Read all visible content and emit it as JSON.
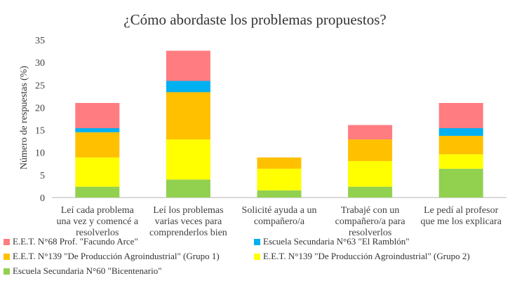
{
  "chart_data": {
    "type": "stacked-bar",
    "title": "¿Cómo abordaste los problemas propuestos?",
    "xlabel": "",
    "ylabel": "Número de respuestas (%)",
    "ylim": [
      0,
      35
    ],
    "yticks": [
      0,
      5,
      10,
      15,
      20,
      25,
      30,
      35
    ],
    "grid": false,
    "legend_position": "bottom",
    "categories": [
      "Leí cada problema una vez y comencé a resolverlos",
      "Leí los problemas varias veces para comprenderlos bien",
      "Solicité ayuda a un compañero/a",
      "Trabajé con un compañero/a para resolverlos",
      "Le pedí al profesor que me los explicara"
    ],
    "category_lines": [
      [
        "Leí cada problema",
        "una vez y comencé a",
        "resolverlos"
      ],
      [
        "Leí los problemas",
        "varias veces para",
        "comprenderlos bien"
      ],
      [
        "Solicité ayuda a un",
        "compañero/a"
      ],
      [
        "Trabajé con un",
        "compañero/a para",
        "resolverlos"
      ],
      [
        "Le pedí al profesor",
        "que me los explicara"
      ]
    ],
    "series": [
      {
        "name": "Escuela Secundaria N°60 \"Bicentenario\"",
        "color": "#92D050",
        "values": [
          2.4,
          4.0,
          1.6,
          2.4,
          6.4
        ]
      },
      {
        "name": "E.E.T. N°139 \"De Producción Agroindustrial\" (Grupo 2)",
        "color": "#FFFF00",
        "values": [
          6.5,
          8.9,
          4.8,
          5.7,
          3.2
        ]
      },
      {
        "name": "E.E.T. N°139 \"De Producción Agroindustrial\" (Grupo 1)",
        "color": "#FFC000",
        "values": [
          5.6,
          10.5,
          2.5,
          4.8,
          4.1
        ]
      },
      {
        "name": "Escuela Secundaria N°63 \"El Ramblón\"",
        "color": "#00B0F0",
        "values": [
          0.9,
          2.5,
          0,
          0,
          1.7
        ]
      },
      {
        "name": "E.E.T. N°68 Prof. \"Facundo Arce\"",
        "color": "#FF7C80",
        "values": [
          5.6,
          6.7,
          0,
          3.2,
          5.6
        ]
      }
    ]
  }
}
